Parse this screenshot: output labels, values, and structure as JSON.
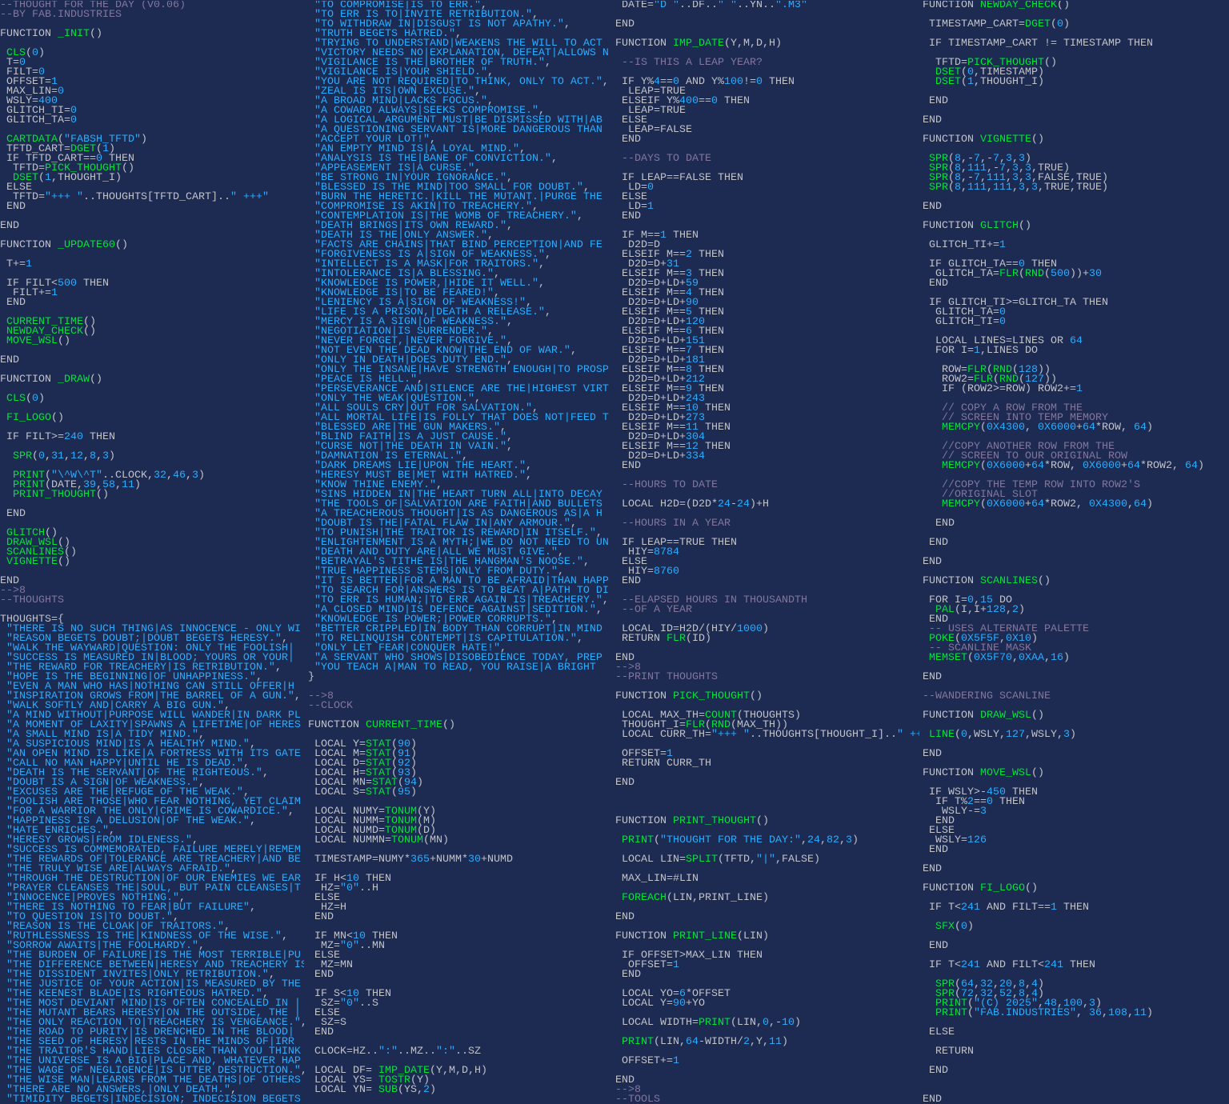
{
  "columns": [
    {
      "blocks": [
        [
          "--THOUGHT FOR THE DAY (V0.06)",
          "--BY FAB.INDUSTRIES"
        ],
        [
          "FUNCTION _INIT()"
        ],
        [
          " CLS(0)",
          " T=0",
          " FILT=0",
          " OFFSET=1",
          " MAX_LIN=0",
          " WSLY=400",
          " GLITCH_TI=0",
          " GLITCH_TA=0"
        ],
        [
          " CARTDATA(\"FABSH_TFTD\")",
          " TFTD_CART=DGET(1)",
          " IF TFTD_CART==0 THEN",
          "  TFTD=PICK_THOUGHT()",
          "  DSET(1,THOUGHT_I)",
          " ELSE",
          "  TFTD=\"+++ \"..THOUGHTS[TFTD_CART]..\" +++\"",
          " END"
        ],
        [
          "END"
        ],
        [
          "FUNCTION _UPDATE60()"
        ],
        [
          " T+=1"
        ],
        [
          " IF FILT<500 THEN",
          "  FILT+=1",
          " END"
        ],
        [
          " CURRENT_TIME()",
          " NEWDAY_CHECK()",
          " MOVE_WSL()"
        ],
        [
          "END"
        ],
        [
          "FUNCTION _DRAW()"
        ],
        [
          " CLS(0)"
        ],
        [
          " FI_LOGO()"
        ],
        [
          " IF FILT>=240 THEN"
        ],
        [
          "  SPR(0,31,12,8,3)"
        ],
        [
          "  PRINT(\"\\^W\\^T\"..CLOCK,32,46,3)",
          "  PRINT(DATE,39,58,11)",
          "  PRINT_THOUGHT()"
        ],
        [
          " END"
        ],
        [
          " GLITCH()",
          " DRAW_WSL()",
          " SCANLINES()",
          " VIGNETTE()"
        ],
        [
          "END",
          "-->8",
          "--THOUGHTS"
        ],
        [
          "THOUGHTS={",
          " \"THERE IS NO SUCH THING|AS INNOCENCE - ONLY WI",
          " \"REASON BEGETS DOUBT;|DOUBT BEGETS HERESY.\",",
          " \"WALK THE WAYWARD|QUESTION: ONLY THE FOOLISH|",
          " \"SUCCESS IS MEASURED IN|BLOOD; YOURS OR YOUR|",
          " \"THE REWARD FOR TREACHERY|IS RETRIBUTION.\",",
          " \"HOPE IS THE BEGINNING|OF UNHAPPINESS.\",",
          " \"EVEN A MAN WHO HAS|NOTHING CAN STILL OFFER|H",
          " \"INSPIRATION GROWS FROM|THE BARREL OF A GUN.\",",
          " \"WALK SOFTLY AND|CARRY A BIG GUN.\",",
          " \"A MIND WITHOUT|PURPOSE WILL WANDER|IN DARK PL",
          " \"A MOMENT OF LAXITY|SPAWNS A LIFETIME|OF HERES",
          " \"A SMALL MIND IS|A TIDY MIND.\",",
          " \"A SUSPICIOUS MIND|IS A HEALTHY MIND.\",",
          " \"AN OPEN MIND IS LIKE|A FORTRESS WITH ITS GATE",
          " \"CALL NO MAN HAPPY|UNTIL HE IS DEAD.\",",
          " \"DEATH IS THE SERVANT|OF THE RIGHTEOUS.\",",
          " \"DOUBT IS A SIGN|OF WEAKNESS.\",",
          " \"EXCUSES ARE THE|REFUGE OF THE WEAK.\",",
          " \"FOOLISH ARE THOSE|WHO FEAR NOTHING, YET CLAIM",
          " \"FOR A WARRIOR THE ONLY|CRIME IS COWARDICE.\",",
          " \"HAPPINESS IS A DELUSION|OF THE WEAK.\",",
          " \"HATE ENRICHES.\",",
          " \"HERESY GROWS|FROM IDLENESS.\",",
          " \"SUCCESS IS COMMEMORATED, FAILURE MERELY|REMEM",
          " \"THE REWARDS OF|TOLERANCE ARE TREACHERY|AND BE",
          " \"THE TRULY WISE ARE|ALWAYS AFRAID.\",",
          " \"THROUGH THE DESTRUCTION|OF OUR ENEMIES WE EAR",
          " \"PRAYER CLEANSES THE|SOUL, BUT PAIN CLEANSES|T",
          " \"INNOCENCE|PROVES NOTHING.\",",
          " \"THERE IS NOTHING TO FEAR|BUT FAILURE\",",
          " \"TO QUESTION IS|TO DOUBT.\",",
          " \"REASON IS THE CLOAK|OF TRAITORS.\",",
          " \"RUTHLESSNESS IS THE|KINDNESS OF THE WISE.\",",
          " \"SORROW AWAITS|THE FOOLHARDY.\",",
          " \"THE BURDEN OF FAILURE|IS THE MOST TERRIBLE|PU",
          " \"THE DIFFERENCE BETWEEN|HERESY AND TREACHERY IS",
          " \"THE DISSIDENT INVITES|ONLY RETRIBUTION.\",",
          " \"THE JUSTICE OF YOUR ACTION|IS MEASURED BY THE",
          " \"THE KEENEST BLADE|IS RIGHTEOUS HATRED.\",",
          " \"THE MOST DEVIANT MIND|IS OFTEN CONCEALED IN |",
          " \"THE MUTANT BEARS HERESY|ON THE OUTSIDE, THE |",
          " \"THE ONLY REACTION TO|TREACHERY IS VENGEANCE.\",",
          " \"THE ROAD TO PURITY|IS DRENCHED IN THE BLOOD|",
          " \"THE SEED OF HERESY|RESTS IN THE MINDS OF|IRR",
          " \"THE TRAITOR'S HAND|LIES CLOSER THAN YOU THINK",
          " \"THE UNIVERSE IS A BIG|PLACE AND, WHATEVER HAP",
          " \"THE WAGE OF NEGLIGENCE|IS UTTER DESTRUCTION.\",",
          " \"THE WISE MAN|LEARNS FROM THE DEATHS|OF OTHERS",
          " \"THERE ARE NO ANSWERS,|ONLY DEATH.\",",
          " \"TIMIDITY BEGETS|INDECISION; INDECISION BEGETS"
        ]
      ]
    },
    {
      "blocks": [
        [
          " \"TO COMPROMISE|IS TO ERR.\",",
          " \"TO ERR IS TO|INVITE RETRIBUTION.\",",
          " \"TO WITHDRAW IN|DISGUST IS NOT APATHY.\",",
          " \"TRUTH BEGETS HATRED.\",",
          " \"TRYING TO UNDERSTAND|WEAKENS THE WILL TO ACT",
          " \"VICTORY NEEDS NO|EXPLANATION, DEFEAT|ALLOWS N",
          " \"VIGILANCE IS THE|BROTHER OF TRUTH.\",",
          " \"VIGILANCE IS|YOUR SHIELD.\",",
          " \"YOU ARE NOT REQUIRED|TO THINK, ONLY TO ACT.\",",
          " \"ZEAL IS ITS|OWN EXCUSE.\",",
          " \"A BROAD MIND|LACKS FOCUS.\",",
          " \"A COWARD ALWAYS|SEEKS COMPROMISE.\",",
          " \"A LOGICAL ARGUMENT MUST|BE DISMISSED WITH|AB",
          " \"A QUESTIONING SERVANT IS|MORE DANGEROUS THAN",
          " \"ACCEPT YOUR LOT!\",",
          " \"AN EMPTY MIND IS|A LOYAL MIND.\",",
          " \"ANALYSIS IS THE|BANE OF CONVICTION.\",",
          " \"APPEASEMENT IS|A CURSE.\",",
          " \"BE STRONG IN|YOUR IGNORANCE.\",",
          " \"BLESSED IS THE MIND|TOO SMALL FOR DOUBT.\",",
          " \"BURN THE HERETIC.|KILL THE MUTANT.|PURGE THE",
          " \"COMPROMISE IS AKIN|TO TREACHERY.\",",
          " \"CONTEMPLATION IS|THE WOMB OF TREACHERY.\",",
          " \"DEATH BRINGS|ITS OWN REWARD.\",",
          " \"DEATH IS THE|ONLY ANSWER.\",",
          " \"FACTS ARE CHAINS|THAT BIND PERCEPTION|AND FE",
          " \"FORGIVENESS IS A|SIGN OF WEAKNESS.\",",
          " \"INTELLECT IS A MASK|FOR TRAITORS.\",",
          " \"INTOLERANCE IS|A BLESSING.\",",
          " \"KNOWLEDGE IS POWER,|HIDE IT WELL.\",",
          " \"KNOWLEDGE IS|TO BE FEARED!\",",
          " \"LENIENCY IS A|SIGN OF WEAKNESS!\",",
          " \"LIFE IS A PRISON,|DEATH A RELEASE.\",",
          " \"MERCY IS A SIGN|OF WEAKNESS.\",",
          " \"NEGOTIATION|IS SURRENDER.\",",
          " \"NEVER FORGET,|NEVER FORGIVE.\",",
          " \"NOT EVEN THE DEAD KNOW|THE END OF WAR.\",",
          " \"ONLY IN DEATH|DOES DUTY END.\",",
          " \"ONLY THE INSANE|HAVE STRENGTH ENOUGH|TO PROSP",
          " \"PEACE IS HELL.\",",
          " \"PERSEVERANCE AND|SILENCE ARE THE|HIGHEST VIRT",
          " \"ONLY THE WEAK|QUESTION.\",",
          " \"ALL SOULS CRY|OUT FOR SALVATION.\",",
          " \"ALL MORTAL LIFE|IS FOLLY THAT DOES NOT|FEED T",
          " \"BLESSED ARE|THE GUN MAKERS.\",",
          " \"BLIND FAITH|IS A JUST CAUSE.\",",
          " \"CURSE NOT|THE DEATH IN VAIN.\",",
          " \"DAMNATION IS ETERNAL.\",",
          " \"DARK DREAMS LIE|UPON THE HEART.\",",
          " \"HERESY MUST BE|MET WITH HATRED.\",",
          " \"KNOW THINE ENEMY.\",",
          " \"SINS HIDDEN IN|THE HEART TURN ALL|INTO DECAY",
          " \"THE TOOLS OF|SALVATION ARE FAITH|AND BULLETS",
          " \"A TREACHEROUS THOUGHT|IS AS DANGEROUS AS|A H",
          " \"DOUBT IS THE|FATAL FLAW IN|ANY ARMOUR.\",",
          " \"TO PUNISH|THE TRAITOR IS REWARD|IN ITSELF.\",",
          " \"ENLIGHTENMENT IS A MYTH;|WE DO NOT NEED TO UN",
          " \"DEATH AND DUTY ARE|ALL WE MUST GIVE.\",",
          " \"BETRAYAL'S TITHE IS|THE HANGMAN'S NOOSE.\",",
          " \"TRUE HAPPINESS STEMS|ONLY FROM DUTY.\",",
          " \"IT IS BETTER|FOR A MAN TO BE AFRAID|THAN HAPP",
          " \"TO SEARCH FOR|ANSWERS IS TO BEAT A|PATH TO DI",
          " \"TO ERR IS HUMAN;|TO ERR AGAIN IS|TREACHERY.\",",
          " \"A CLOSED MIND|IS DEFENCE AGAINST|SEDITION.\",",
          " \"KNOWLEDGE IS POWER;|POWER CORRUPTS.\",",
          " \"BETTER CRIPPLED|IN BODY THAN CORRUPT|IN MIND",
          " \"TO RELINQUISH CONTEMPT|IS CAPITULATION.\",",
          " \"ONLY LET FEAR|CONQUER HATE!\",",
          " \"A SERVANT WHO SHOWS|DISOBEDIENCE TODAY, PREP",
          " \"YOU TEACH A|MAN TO READ, YOU RAISE|A BRIGHT ",
          "}"
        ],
        [
          "-->8",
          "--CLOCK"
        ],
        [
          "FUNCTION CURRENT_TIME()"
        ],
        [
          " LOCAL Y=STAT(90)",
          " LOCAL M=STAT(91)",
          " LOCAL D=STAT(92)",
          " LOCAL H=STAT(93)",
          " LOCAL MN=STAT(94)",
          " LOCAL S=STAT(95)"
        ],
        [
          " LOCAL NUMY=TONUM(Y)",
          " LOCAL NUMM=TONUM(M)",
          " LOCAL NUMD=TONUM(D)",
          " LOCAL NUMMN=TONUM(MN)"
        ],
        [
          " TIMESTAMP=NUMY*365+NUMM*30+NUMD"
        ],
        [
          " IF H<10 THEN",
          "  HZ=\"0\"..H",
          " ELSE",
          "  HZ=H",
          " END"
        ],
        [
          " IF MN<10 THEN",
          "  MZ=\"0\"..MN",
          " ELSE",
          "  MZ=MN",
          " END"
        ],
        [
          " IF S<10 THEN",
          "  SZ=\"0\"..S",
          " ELSE",
          "  SZ=S",
          " END"
        ],
        [
          " CLOCK=HZ..\":\"..MZ..\":\"..SZ"
        ],
        [
          " LOCAL DF= IMP_DATE(Y,M,D,H)",
          " LOCAL YS= TOSTR(Y)",
          " LOCAL YN= SUB(YS,2)"
        ]
      ]
    },
    {
      "blocks": [
        [
          " DATE=\"D \"..DF..\" \"..YN..\".M3\""
        ],
        [
          "END"
        ],
        [
          "FUNCTION IMP_DATE(Y,M,D,H)"
        ],
        [
          " --IS THIS A LEAP YEAR?"
        ],
        [
          " IF Y%4==0 AND Y%100!=0 THEN",
          "  LEAP=TRUE",
          " ELSEIF Y%400==0 THEN",
          "  LEAP=TRUE",
          " ELSE",
          "  LEAP=FALSE",
          " END"
        ],
        [
          " --DAYS TO DATE"
        ],
        [
          " IF LEAP==FALSE THEN",
          "  LD=0",
          " ELSE",
          "  LD=1",
          " END"
        ],
        [
          " IF M==1 THEN",
          "  D2D=D",
          " ELSEIF M==2 THEN",
          "  D2D=D+31",
          " ELSEIF M==3 THEN",
          "  D2D=D+LD+59",
          " ELSEIF M==4 THEN",
          "  D2D=D+LD+90",
          " ELSEIF M==5 THEN",
          "  D2D=D+LD+120",
          " ELSEIF M==6 THEN",
          "  D2D=D+LD+151",
          " ELSEIF M==7 THEN",
          "  D2D=D+LD+181",
          " ELSEIF M==8 THEN",
          "  D2D=D+LD+212",
          " ELSEIF M==9 THEN",
          "  D2D=D+LD+243",
          " ELSEIF M==10 THEN",
          "  D2D=D+LD+273",
          " ELSEIF M==11 THEN",
          "  D2D=D+LD+304",
          " ELSEIF M==12 THEN",
          "  D2D=D+LD+334",
          " END"
        ],
        [
          " --HOURS TO DATE"
        ],
        [
          " LOCAL H2D=(D2D*24-24)+H"
        ],
        [
          " --HOURS IN A YEAR"
        ],
        [
          " IF LEAP==TRUE THEN",
          "  HIY=8784",
          " ELSE",
          "  HIY=8760",
          " END"
        ],
        [
          " --ELAPSED HOURS IN THOUSANDTH",
          " --OF A YEAR"
        ],
        [
          " LOCAL ID=H2D/(HIY/1000)",
          " RETURN FLR(ID)"
        ],
        [
          "END",
          "-->8",
          "--PRINT THOUGHTS"
        ],
        [
          "FUNCTION PICK_THOUGHT()"
        ],
        [
          " LOCAL MAX_TH=COUNT(THOUGHTS)",
          " THOUGHT_I=FLR(RND(MAX_TH))",
          " LOCAL CURR_TH=\"+++ \"..THOUGHTS[THOUGHT_I]..\" +++\""
        ],
        [
          " OFFSET=1",
          " RETURN CURR_TH"
        ],
        [
          "END"
        ],
        [
          "FUNCTION PRINT_THOUGHT()"
        ],
        [
          " PRINT(\"THOUGHT FOR THE DAY:\",24,82,3)"
        ],
        [
          " LOCAL LIN=SPLIT(TFTD,\"|\",FALSE)"
        ],
        [
          " MAX_LIN=#LIN"
        ],
        [
          " FOREACH(LIN,PRINT_LINE)"
        ],
        [
          "END"
        ],
        [
          "FUNCTION PRINT_LINE(LIN)"
        ],
        [
          " IF OFFSET>MAX_LIN THEN",
          "  OFFSET=1",
          " END"
        ],
        [
          " LOCAL YO=6*OFFSET",
          " LOCAL Y=90+YO"
        ],
        [
          " LOCAL WIDTH=PRINT(LIN,0,-10)"
        ],
        [
          " PRINT(LIN,64-WIDTH/2,Y,11)"
        ],
        [
          " OFFSET+=1"
        ],
        [
          "END",
          "-->8",
          "--TOOLS"
        ]
      ]
    },
    {
      "blocks": [
        [
          "FUNCTION NEWDAY_CHECK()"
        ],
        [
          " TIMESTAMP_CART=DGET(0)"
        ],
        [
          " IF TIMESTAMP_CART != TIMESTAMP THEN"
        ],
        [
          "  TFTD=PICK_THOUGHT()",
          "  DSET(0,TIMESTAMP)",
          "  DSET(1,THOUGHT_I)"
        ],
        [
          " END"
        ],
        [
          "END"
        ],
        [
          "FUNCTION VIGNETTE()"
        ],
        [
          " SPR(8,-7,-7,3,3)",
          " SPR(8,111,-7,3,3,TRUE)",
          " SPR(8,-7,111,3,3,FALSE,TRUE)",
          " SPR(8,111,111,3,3,TRUE,TRUE)"
        ],
        [
          "END"
        ],
        [
          "FUNCTION GLITCH()"
        ],
        [
          " GLITCH_TI+=1"
        ],
        [
          " IF GLITCH_TA==0 THEN",
          "  GLITCH_TA=FLR(RND(500))+30",
          " END"
        ],
        [
          " IF GLITCH_TI>=GLITCH_TA THEN",
          "  GLITCH_TA=0",
          "  GLITCH_TI=0"
        ],
        [
          "  LOCAL LINES=LINES OR 64",
          "  FOR I=1,LINES DO"
        ],
        [
          "   ROW=FLR(RND(128))",
          "   ROW2=FLR(RND(127))",
          "   IF (ROW2>=ROW) ROW2+=1"
        ],
        [
          "   // COPY A ROW FROM THE",
          "   // SCREEN INTO TEMP MEMORY",
          "   MEMCPY(0X4300, 0X6000+64*ROW, 64)"
        ],
        [
          "   //COPY ANOTHER ROW FROM THE",
          "   // SCREEN TO OUR ORIGINAL ROW",
          "   MEMCPY(0X6000+64*ROW, 0X6000+64*ROW2, 64)"
        ],
        [
          "   //COPY THE TEMP ROW INTO ROW2'S",
          "   //ORIGINAL SLOT",
          "   MEMCPY(0X6000+64*ROW2, 0X4300,64)"
        ],
        [
          "  END"
        ],
        [
          " END"
        ],
        [
          "END"
        ],
        [
          "FUNCTION SCANLINES()"
        ],
        [
          " FOR I=0,15 DO",
          "  PAL(I,I+128,2)",
          " END",
          " -- USES ALTERNATE PALETTE",
          " POKE(0X5F5F,0X10)",
          " -- SCANLINE MASK",
          " MEMSET(0X5F70,0XAA,16)"
        ],
        [
          "END"
        ],
        [
          "--WANDERING SCANLINE"
        ],
        [
          "FUNCTION DRAW_WSL()"
        ],
        [
          " LINE(0,WSLY,127,WSLY,3)"
        ],
        [
          "END"
        ],
        [
          "FUNCTION MOVE_WSL()"
        ],
        [
          " IF WSLY>-450 THEN",
          "  IF T%2==0 THEN",
          "   WSLY-=3",
          "  END",
          " ELSE",
          "  WSLY=126",
          " END"
        ],
        [
          "END"
        ],
        [
          "FUNCTION FI_LOGO()"
        ],
        [
          " IF T<241 AND FILT==1 THEN"
        ],
        [
          "  SFX(0)"
        ],
        [
          " END"
        ],
        [
          " IF T<241 AND FILT<241 THEN"
        ],
        [
          "  SPR(64,32,20,8,4)",
          "  SPR(72,32,52,8,4)",
          "  PRINT(\"(C) 2025\",48,100,3)",
          "  PRINT(\"FAB.INDUSTRIES\", 36,108,11)"
        ],
        [
          " ELSE"
        ],
        [
          "  RETURN"
        ],
        [
          " END"
        ],
        [
          "END"
        ]
      ]
    }
  ]
}
